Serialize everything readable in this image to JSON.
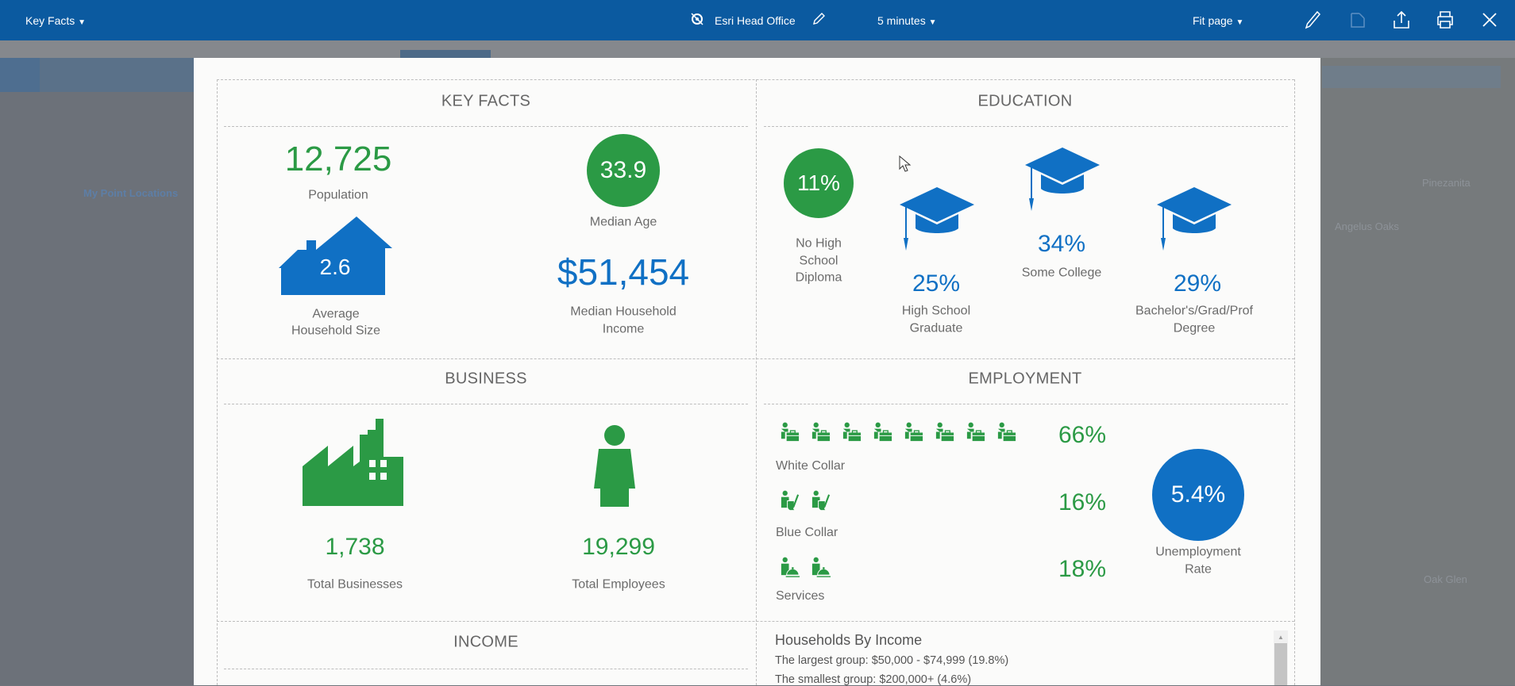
{
  "toolbar": {
    "title": "Key Facts",
    "location": "Esri Head Office",
    "interval": "5 minutes",
    "zoom": "Fit page"
  },
  "background": {
    "map_labels": [
      "Angelus Oaks",
      "Oak Glen",
      "Pinezanita"
    ],
    "tree_label": "My Point Locations"
  },
  "colors": {
    "header": "#0b5aa0",
    "green": "#2b9a45",
    "blue": "#1070c4"
  },
  "key_facts": {
    "title": "KEY FACTS",
    "population": "12,725",
    "population_label": "Population",
    "median_age": "33.9",
    "median_age_label": "Median Age",
    "household_size": "2.6",
    "household_size_label": [
      "Average",
      "Household Size"
    ],
    "median_income": "$51,454",
    "median_income_label": [
      "Median Household",
      "Income"
    ]
  },
  "education": {
    "title": "EDUCATION",
    "no_hs": "11%",
    "no_hs_label": [
      "No High",
      "School",
      "Diploma"
    ],
    "hs": "25%",
    "hs_label": [
      "High School",
      "Graduate"
    ],
    "some_college": "34%",
    "some_college_label": "Some College",
    "bachelors": "29%",
    "bachelors_label": [
      "Bachelor's/Grad/Prof",
      "Degree"
    ]
  },
  "business": {
    "title": "BUSINESS",
    "businesses": "1,738",
    "businesses_label": "Total Businesses",
    "employees": "19,299",
    "employees_label": "Total Employees"
  },
  "employment": {
    "title": "EMPLOYMENT",
    "rows": [
      {
        "label": "White Collar",
        "value": "66%",
        "icon_count": 8,
        "icon": "briefcase-worker"
      },
      {
        "label": "Blue Collar",
        "value": "16%",
        "icon_count": 2,
        "icon": "broom-worker"
      },
      {
        "label": "Services",
        "value": "18%",
        "icon_count": 2,
        "icon": "service-bell-worker"
      }
    ],
    "unemployment": "5.4%",
    "unemployment_label": [
      "Unemployment",
      "Rate"
    ]
  },
  "income": {
    "title": "INCOME",
    "heading": "Households By Income",
    "largest": "The largest group: $50,000 - $74,999 (19.8%)",
    "smallest": "The smallest group: $200,000+ (4.6%)"
  }
}
